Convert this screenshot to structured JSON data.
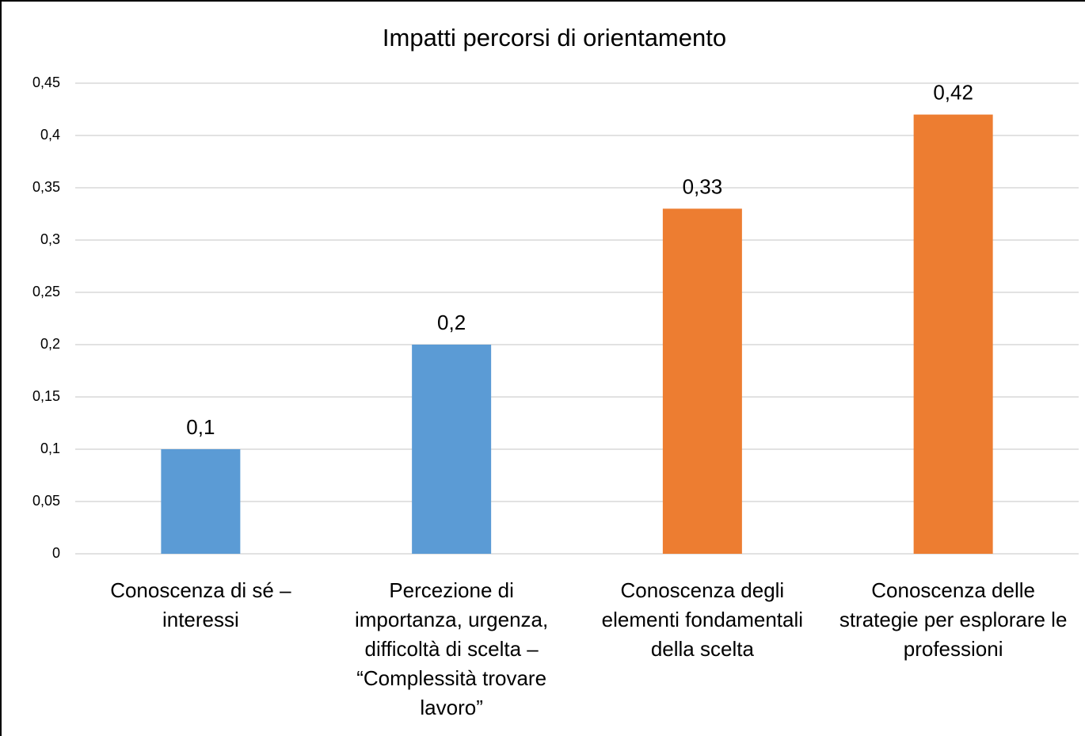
{
  "chart_data": {
    "type": "bar",
    "title": "Impatti percorsi di orientamento",
    "categories": [
      "Conoscenza di sé – interessi",
      "Percezione di importanza, urgenza, difficoltà di scelta – “Complessità trovare lavoro”",
      "Conoscenza degli elementi fondamentali della scelta",
      "Conoscenza delle strategie per esplorare le professioni"
    ],
    "values": [
      0.1,
      0.2,
      0.33,
      0.42
    ],
    "value_labels": [
      "0,1",
      "0,2",
      "0,33",
      "0,42"
    ],
    "colors": [
      "#5b9bd5",
      "#5b9bd5",
      "#ed7d31",
      "#ed7d31"
    ],
    "ylim": [
      0,
      0.45
    ],
    "yticks": [
      0,
      {
        "value": 0.05,
        "label": "0,05"
      },
      {
        "value": 0.1,
        "label": "0,1"
      },
      {
        "value": 0.15,
        "label": "0,15"
      },
      {
        "value": 0.2,
        "label": "0,2"
      },
      {
        "value": 0.25,
        "label": "0,25"
      },
      {
        "value": 0.3,
        "label": "0,3"
      },
      {
        "value": 0.35,
        "label": "0,35"
      },
      {
        "value": 0.4,
        "label": "0,4"
      },
      {
        "value": 0.45,
        "label": "0,45"
      }
    ],
    "grid": true
  }
}
